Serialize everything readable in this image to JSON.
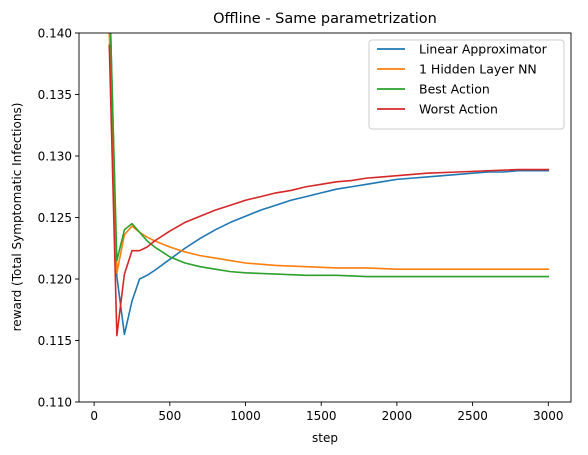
{
  "chart_data": {
    "type": "line",
    "title": "Offline - Same parametrization",
    "xlabel": "step",
    "ylabel": "reward (Total Symptomatic Infections)",
    "xlim": [
      -100,
      3150
    ],
    "ylim": [
      0.11,
      0.14
    ],
    "x_ticks": [
      0,
      500,
      1000,
      1500,
      2000,
      2500,
      3000
    ],
    "y_ticks": [
      0.11,
      0.115,
      0.12,
      0.125,
      0.13,
      0.135,
      0.14
    ],
    "y_tick_labels": [
      "0.110",
      "0.115",
      "0.120",
      "0.125",
      "0.130",
      "0.135",
      "0.140"
    ],
    "legend_position": "top-right",
    "series": [
      {
        "name": "Linear Approximator",
        "color": "#1f77b4",
        "x": [
          100,
          150,
          200,
          250,
          300,
          350,
          400,
          500,
          600,
          700,
          800,
          900,
          1000,
          1100,
          1200,
          1300,
          1400,
          1500,
          1600,
          1700,
          1800,
          1900,
          2000,
          2100,
          2200,
          2300,
          2400,
          2500,
          2600,
          2700,
          2800,
          2900,
          3000
        ],
        "y": [
          0.1445,
          0.1202,
          0.1155,
          0.1182,
          0.12,
          0.1203,
          0.1207,
          0.1216,
          0.1225,
          0.1233,
          0.124,
          0.1246,
          0.1251,
          0.1256,
          0.126,
          0.1264,
          0.1267,
          0.127,
          0.1273,
          0.1275,
          0.1277,
          0.1279,
          0.1281,
          0.1282,
          0.1283,
          0.1284,
          0.1285,
          0.1286,
          0.1287,
          0.1287,
          0.1288,
          0.1288,
          0.1288
        ]
      },
      {
        "name": "1 Hidden Layer NN",
        "color": "#ff7f0e",
        "x": [
          100,
          150,
          200,
          250,
          300,
          350,
          400,
          500,
          600,
          700,
          800,
          900,
          1000,
          1200,
          1400,
          1600,
          1800,
          2000,
          2200,
          2400,
          2600,
          2800,
          3000
        ],
        "y": [
          0.14,
          0.1205,
          0.1236,
          0.1243,
          0.1238,
          0.1234,
          0.1231,
          0.1226,
          0.1222,
          0.1219,
          0.1217,
          0.1215,
          0.1213,
          0.1211,
          0.121,
          0.1209,
          0.1209,
          0.1208,
          0.1208,
          0.1208,
          0.1208,
          0.1208,
          0.1208
        ]
      },
      {
        "name": "Best Action",
        "color": "#2ca02c",
        "x": [
          100,
          150,
          200,
          250,
          300,
          350,
          400,
          500,
          600,
          700,
          800,
          900,
          1000,
          1200,
          1400,
          1600,
          1800,
          2000,
          2200,
          2400,
          2600,
          2800,
          3000
        ],
        "y": [
          0.144,
          0.1215,
          0.124,
          0.1245,
          0.1238,
          0.1231,
          0.1226,
          0.1218,
          0.1213,
          0.121,
          0.1208,
          0.1206,
          0.1205,
          0.1204,
          0.1203,
          0.1203,
          0.1202,
          0.1202,
          0.1202,
          0.1202,
          0.1202,
          0.1202,
          0.1202
        ]
      },
      {
        "name": "Worst Action",
        "color": "#d62728",
        "x": [
          100,
          150,
          200,
          250,
          300,
          350,
          400,
          500,
          600,
          700,
          800,
          900,
          1000,
          1100,
          1200,
          1300,
          1400,
          1500,
          1600,
          1700,
          1800,
          1900,
          2000,
          2200,
          2400,
          2600,
          2800,
          3000
        ],
        "y": [
          0.139,
          0.1154,
          0.1204,
          0.1223,
          0.1223,
          0.1226,
          0.1231,
          0.1239,
          0.1246,
          0.1251,
          0.1256,
          0.126,
          0.1264,
          0.1267,
          0.127,
          0.1272,
          0.1275,
          0.1277,
          0.1279,
          0.128,
          0.1282,
          0.1283,
          0.1284,
          0.1286,
          0.1287,
          0.1288,
          0.1289,
          0.1289
        ]
      }
    ]
  }
}
